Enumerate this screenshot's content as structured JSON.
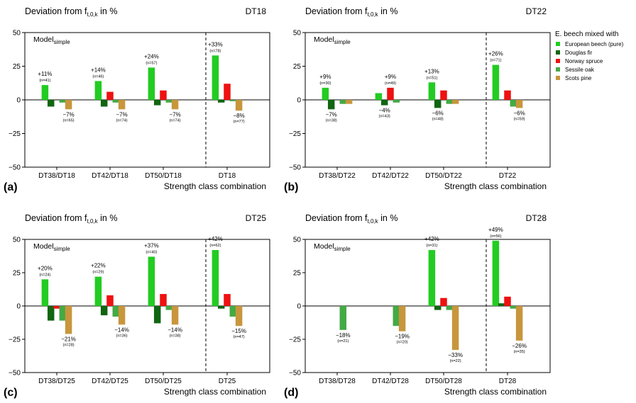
{
  "series_colors": [
    "#22cc22",
    "#116611",
    "#ee1111",
    "#44aa44",
    "#c8963c"
  ],
  "legend": {
    "title": "E. beech mixed with",
    "entries": [
      "European beech (pure)",
      "Douglas fir",
      "Norway spruce",
      "Sessile oak",
      "Scots pine"
    ]
  },
  "y_ticks": [
    "50",
    "25",
    "0",
    "−25",
    "−50"
  ],
  "chart_data": [
    {
      "type": "bar",
      "panel": "(a)",
      "title_main": "Deviation from f",
      "title_sub": "t,0,k",
      "title_tail": " in %",
      "panel_name": "DT18",
      "model_main": "Model",
      "model_sub": "simple",
      "xlabel": "Strength class combination",
      "ylim": [
        -50,
        50
      ],
      "categories": [
        "DT38/DT18",
        "DT42/DT18",
        "DT50/DT18",
        "DT18"
      ],
      "series": [
        {
          "name": "European beech (pure)",
          "values": [
            11,
            14,
            24,
            33
          ]
        },
        {
          "name": "Douglas fir",
          "values": [
            -5,
            -5,
            -4,
            -2
          ]
        },
        {
          "name": "Norway spruce",
          "values": [
            0,
            6,
            7,
            12
          ]
        },
        {
          "name": "Sessile oak",
          "values": [
            -2,
            -2,
            -2,
            -1
          ]
        },
        {
          "name": "Scots pine",
          "values": [
            -7,
            -7,
            -7,
            -8
          ]
        }
      ],
      "annotations": [
        {
          "cat": 0,
          "series": 0,
          "pct": "+11%",
          "n": "(n=41)"
        },
        {
          "cat": 0,
          "series": 4,
          "pct": "−7%",
          "n": "(n=65)"
        },
        {
          "cat": 1,
          "series": 0,
          "pct": "+14%",
          "n": "(n=46)"
        },
        {
          "cat": 1,
          "series": 4,
          "pct": "−7%",
          "n": "(n=74)"
        },
        {
          "cat": 2,
          "series": 0,
          "pct": "+24%",
          "n": "(n=57)"
        },
        {
          "cat": 2,
          "series": 4,
          "pct": "−7%",
          "n": "(n=74)"
        },
        {
          "cat": 3,
          "series": 0,
          "pct": "+33%",
          "n": "(n=78)"
        },
        {
          "cat": 3,
          "series": 4,
          "pct": "−8%",
          "n": "(n=77)"
        }
      ]
    },
    {
      "type": "bar",
      "panel": "(b)",
      "title_main": "Deviation from f",
      "title_sub": "t,0,k",
      "title_tail": " in %",
      "panel_name": "DT22",
      "model_main": "Model",
      "model_sub": "simple",
      "xlabel": "Strength class combination",
      "ylim": [
        -50,
        50
      ],
      "categories": [
        "DT38/DT22",
        "DT42/DT22",
        "DT50/DT22",
        "DT22"
      ],
      "series": [
        {
          "name": "European beech (pure)",
          "values": [
            9,
            5,
            13,
            26
          ]
        },
        {
          "name": "Douglas fir",
          "values": [
            -7,
            -4,
            -6,
            0
          ]
        },
        {
          "name": "Norway spruce",
          "values": [
            0,
            9,
            7,
            7
          ]
        },
        {
          "name": "Sessile oak",
          "values": [
            -3,
            -2,
            -3,
            -5
          ]
        },
        {
          "name": "Scots pine",
          "values": [
            -3,
            0,
            -3,
            -6
          ]
        }
      ],
      "annotations": [
        {
          "cat": 0,
          "series": 0,
          "pct": "+9%",
          "n": "(n=30)"
        },
        {
          "cat": 0,
          "series": 1,
          "pct": "−7%",
          "n": "(n=38)"
        },
        {
          "cat": 1,
          "series": 2,
          "pct": "+9%",
          "n": "(n=49)"
        },
        {
          "cat": 1,
          "series": 1,
          "pct": "−4%",
          "n": "(n=43)"
        },
        {
          "cat": 2,
          "series": 0,
          "pct": "+13%",
          "n": "(n=51)"
        },
        {
          "cat": 2,
          "series": 1,
          "pct": "−6%",
          "n": "(n=48)"
        },
        {
          "cat": 3,
          "series": 0,
          "pct": "+26%",
          "n": "(n=71)"
        },
        {
          "cat": 3,
          "series": 4,
          "pct": "−6%",
          "n": "(n=59)"
        }
      ]
    },
    {
      "type": "bar",
      "panel": "(c)",
      "title_main": "Deviation from f",
      "title_sub": "t,0,k",
      "title_tail": " in %",
      "panel_name": "DT25",
      "model_main": "Model",
      "model_sub": "simple",
      "xlabel": "Strength class combination",
      "ylim": [
        -50,
        50
      ],
      "categories": [
        "DT38/DT25",
        "DT42/DT25",
        "DT50/DT25",
        "DT25"
      ],
      "series": [
        {
          "name": "European beech (pure)",
          "values": [
            20,
            22,
            37,
            42
          ]
        },
        {
          "name": "Douglas fir",
          "values": [
            -11,
            -7,
            -13,
            -2
          ]
        },
        {
          "name": "Norway spruce",
          "values": [
            -2,
            8,
            9,
            9
          ]
        },
        {
          "name": "Sessile oak",
          "values": [
            -11,
            -8,
            -3,
            -8
          ]
        },
        {
          "name": "Scots pine",
          "values": [
            -21,
            -14,
            -14,
            -15
          ]
        }
      ],
      "annotations": [
        {
          "cat": 0,
          "series": 0,
          "pct": "+20%",
          "n": "(n=24)"
        },
        {
          "cat": 0,
          "series": 4,
          "pct": "−21%",
          "n": "(n=28)"
        },
        {
          "cat": 1,
          "series": 0,
          "pct": "+22%",
          "n": "(n=29)"
        },
        {
          "cat": 1,
          "series": 4,
          "pct": "−14%",
          "n": "(n=36)"
        },
        {
          "cat": 2,
          "series": 0,
          "pct": "+37%",
          "n": "(n=40)"
        },
        {
          "cat": 2,
          "series": 4,
          "pct": "−14%",
          "n": "(n=38)"
        },
        {
          "cat": 3,
          "series": 0,
          "pct": "+42%",
          "n": "(n=62)"
        },
        {
          "cat": 3,
          "series": 4,
          "pct": "−15%",
          "n": "(n=47)"
        }
      ]
    },
    {
      "type": "bar",
      "panel": "(d)",
      "title_main": "Deviation from f",
      "title_sub": "t,0,k",
      "title_tail": " in %",
      "panel_name": "DT28",
      "model_main": "Model",
      "model_sub": "simple",
      "xlabel": "Strength class combination",
      "ylim": [
        -50,
        50
      ],
      "categories": [
        "DT38/DT28",
        "DT42/DT28",
        "DT50/DT28",
        "DT28"
      ],
      "series": [
        {
          "name": "European beech (pure)",
          "values": [
            0,
            0,
            42,
            49
          ]
        },
        {
          "name": "Douglas fir",
          "values": [
            0,
            0,
            -3,
            2
          ]
        },
        {
          "name": "Norway spruce",
          "values": [
            0,
            0,
            6,
            7
          ]
        },
        {
          "name": "Sessile oak",
          "values": [
            -18,
            -15,
            -3,
            -2
          ]
        },
        {
          "name": "Scots pine",
          "values": [
            0,
            -19,
            -33,
            -26
          ]
        }
      ],
      "annotations": [
        {
          "cat": 0,
          "series": 3,
          "pct": "−18%",
          "n": "(n=21)"
        },
        {
          "cat": 1,
          "series": 4,
          "pct": "−19%",
          "n": "(n=20)"
        },
        {
          "cat": 2,
          "series": 0,
          "pct": "+42%",
          "n": "(n=31)"
        },
        {
          "cat": 2,
          "series": 4,
          "pct": "−33%",
          "n": "(n=22)"
        },
        {
          "cat": 3,
          "series": 0,
          "pct": "+49%",
          "n": "(n=56)"
        },
        {
          "cat": 3,
          "series": 4,
          "pct": "−26%",
          "n": "(n=35)"
        }
      ]
    }
  ]
}
